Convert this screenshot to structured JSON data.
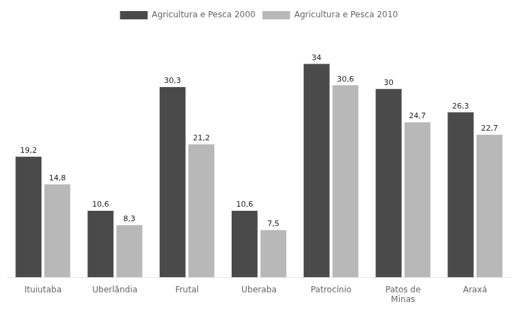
{
  "chart_data": {
    "type": "bar",
    "categories": [
      "Ituiutaba",
      "Uberlândia",
      "Frutal",
      "Uberaba",
      "Patrocínio",
      "Patos de\nMinas",
      "Araxá"
    ],
    "series": [
      {
        "name": "Agricultura e Pesca 2000",
        "color": "#4a4a4a",
        "values": [
          19.2,
          10.6,
          30.3,
          10.6,
          34.0,
          30.0,
          26.3
        ],
        "value_labels": [
          "19,2",
          "10,6",
          "30,3",
          "10,6",
          "34",
          "30",
          "26,3"
        ]
      },
      {
        "name": "Agricultura e Pesca 2010",
        "color": "#b8b8b8",
        "values": [
          14.8,
          8.3,
          21.2,
          7.5,
          30.6,
          24.7,
          22.7
        ],
        "value_labels": [
          "14,8",
          "8,3",
          "21,2",
          "7,5",
          "30,6",
          "24,7",
          "22,7"
        ]
      }
    ],
    "ylim": [
      0,
      40
    ],
    "grid": false,
    "legend": "top",
    "data_labels": true,
    "tick_labels": "x"
  }
}
